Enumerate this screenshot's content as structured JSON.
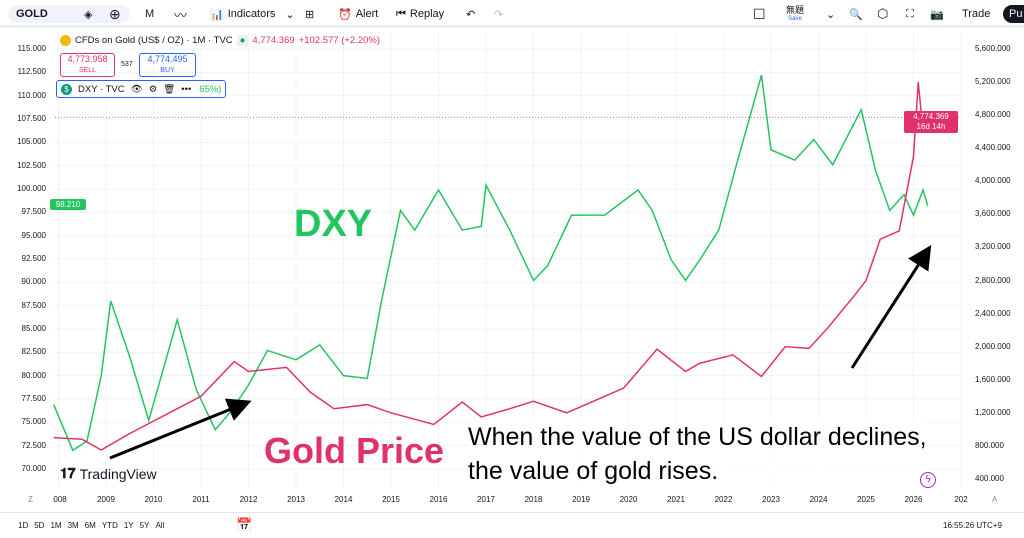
{
  "toolbar": {
    "symbol": "GOLD",
    "interval": "M",
    "indicators": "Indicators",
    "alert": "Alert",
    "replay": "Replay",
    "layout_name": "無題",
    "save": "Save",
    "trade": "Trade",
    "publish": "Pu"
  },
  "legend": {
    "title": "CFDs on Gold (US$ / OZ) · 1M · TVC",
    "price": "4,774.369",
    "change": "+102.577 (+2.20%)",
    "sell_price": "4,773.958",
    "sell": "SELL",
    "spread": "537",
    "buy_price": "4,774.495",
    "buy": "BUY",
    "dxy": "DXY · TVC",
    "dxy_tail": "65%)"
  },
  "price_tag": {
    "price": "4,774.369",
    "countdown": "16d 14h"
  },
  "dxy_tag": "98.210",
  "annotations": {
    "dxy": "DXY",
    "gold": "Gold Price",
    "line1": "When the value of the US dollar declines,",
    "line2": "the value of gold rises."
  },
  "logo": "TradingView",
  "bottom": {
    "ranges": [
      "1D",
      "5D",
      "1M",
      "3M",
      "6M",
      "YTD",
      "1Y",
      "5Y",
      "All"
    ],
    "time": "16:55:26 UTC+9",
    "z": "Z",
    "a": "A"
  },
  "colors": {
    "dxy": "#22c55e",
    "gold": "#e0316b",
    "arrow": "#000000"
  },
  "chart_data": {
    "type": "line",
    "x_ticks": [
      "008",
      "2009",
      "2010",
      "2011",
      "2012",
      "2013",
      "2014",
      "2015",
      "2016",
      "2017",
      "2018",
      "2019",
      "2020",
      "2021",
      "2022",
      "2023",
      "2024",
      "2025",
      "2026",
      "202"
    ],
    "left_axis": {
      "ticks": [
        "115.000",
        "112.500",
        "110.000",
        "107.500",
        "105.000",
        "102.500",
        "100.000",
        "97.500",
        "95.000",
        "92.500",
        "90.000",
        "87.500",
        "85.000",
        "82.500",
        "80.000",
        "77.500",
        "75.000",
        "72.500",
        "70.000"
      ],
      "range": [
        70,
        115
      ]
    },
    "right_axis": {
      "ticks": [
        "5,600.000",
        "5,200.000",
        "4,800.000",
        "4,400.000",
        "4,000.000",
        "3,600.000",
        "3,200.000",
        "2,800.000",
        "2,400.000",
        "2,000.000",
        "1,600.000",
        "1,200.000",
        "800.000",
        "400.000"
      ],
      "range": [
        400,
        5600
      ]
    },
    "grid": true,
    "series": [
      {
        "name": "DXY",
        "axis": "left",
        "x": [
          2007.9,
          2008.3,
          2008.6,
          2008.9,
          2009.1,
          2009.5,
          2009.9,
          2010.5,
          2010.9,
          2011.3,
          2011.6,
          2012.0,
          2012.4,
          2013.0,
          2013.5,
          2014.0,
          2014.5,
          2014.8,
          2015.2,
          2015.5,
          2016.0,
          2016.5,
          2016.9,
          2017.0,
          2017.5,
          2018.0,
          2018.3,
          2018.8,
          2019.5,
          2020.2,
          2020.5,
          2020.9,
          2021.2,
          2021.5,
          2021.9,
          2022.3,
          2022.8,
          2023.0,
          2023.5,
          2023.9,
          2024.3,
          2024.9,
          2025.2,
          2025.5,
          2025.8,
          2026.0,
          2026.2,
          2026.3
        ],
        "values": [
          76.9,
          72.0,
          73.0,
          80.0,
          88.0,
          82.0,
          75.2,
          86.0,
          78.5,
          74.2,
          76.0,
          79.0,
          82.7,
          81.7,
          83.3,
          80.0,
          79.7,
          88.0,
          97.7,
          95.6,
          99.9,
          95.6,
          96.0,
          100.4,
          95.6,
          90.2,
          91.8,
          97.2,
          97.2,
          99.9,
          97.7,
          92.4,
          90.2,
          92.4,
          95.6,
          103.1,
          112.2,
          104.2,
          103.1,
          105.3,
          102.6,
          108.5,
          102.0,
          97.7,
          99.4,
          97.2,
          99.9,
          98.2
        ]
      },
      {
        "name": "GOLD",
        "axis": "right",
        "x": [
          2007.9,
          2008.5,
          2008.9,
          2009.5,
          2010.0,
          2010.5,
          2011.0,
          2011.7,
          2012.0,
          2012.8,
          2013.3,
          2013.8,
          2014.5,
          2015.0,
          2015.9,
          2016.5,
          2016.9,
          2017.5,
          2018.0,
          2018.7,
          2019.5,
          2019.9,
          2020.6,
          2021.2,
          2021.5,
          2022.2,
          2022.8,
          2023.3,
          2023.8,
          2024.2,
          2024.8,
          2025.0,
          2025.3,
          2025.7,
          2025.9,
          2026.0,
          2026.1,
          2026.2,
          2026.3
        ],
        "values": [
          900,
          880,
          750,
          950,
          1100,
          1250,
          1400,
          1820,
          1700,
          1750,
          1450,
          1250,
          1300,
          1200,
          1060,
          1330,
          1150,
          1250,
          1340,
          1200,
          1400,
          1500,
          1970,
          1700,
          1800,
          1900,
          1640,
          2000,
          1980,
          2230,
          2650,
          2800,
          3300,
          3400,
          4000,
          4300,
          5200,
          4600,
          4774
        ]
      }
    ]
  }
}
